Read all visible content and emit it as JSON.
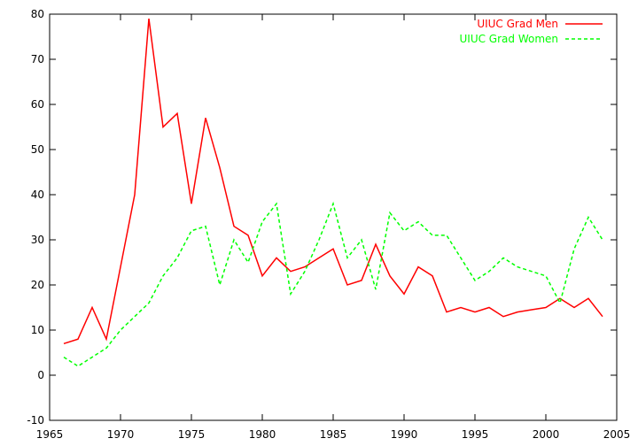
{
  "chart_data": {
    "type": "line",
    "title": "",
    "xlabel": "",
    "ylabel": "",
    "xlim": [
      1965,
      2005
    ],
    "ylim": [
      -10,
      80
    ],
    "xticks": [
      1965,
      1970,
      1975,
      1980,
      1985,
      1990,
      1995,
      2000,
      2005
    ],
    "yticks": [
      -10,
      0,
      10,
      20,
      30,
      40,
      50,
      60,
      70,
      80
    ],
    "grid": false,
    "legend_position": "top-right",
    "x": [
      1966,
      1967,
      1968,
      1969,
      1970,
      1971,
      1972,
      1973,
      1974,
      1975,
      1976,
      1977,
      1978,
      1979,
      1980,
      1981,
      1982,
      1983,
      1984,
      1985,
      1986,
      1987,
      1988,
      1989,
      1990,
      1991,
      1992,
      1993,
      1994,
      1995,
      1996,
      1997,
      1998,
      1999,
      2000,
      2001,
      2002,
      2003,
      2004
    ],
    "series": [
      {
        "name": "UIUC Grad Men",
        "color": "#ff0000",
        "dash": "solid",
        "values": [
          7,
          8,
          15,
          8,
          24,
          40,
          79,
          55,
          58,
          38,
          57,
          46,
          33,
          31,
          22,
          26,
          23,
          24,
          26,
          28,
          20,
          21,
          29,
          22,
          18,
          24,
          22,
          14,
          15,
          14,
          15,
          13,
          14,
          14.5,
          15,
          17,
          15,
          17,
          13
        ]
      },
      {
        "name": "UIUC Grad Women",
        "color": "#00ff00",
        "dash": "dashed",
        "values": [
          4,
          2,
          4,
          6,
          10,
          13,
          16,
          22,
          26,
          32,
          33,
          20,
          30,
          25,
          34,
          38,
          18,
          23,
          30,
          38,
          26,
          30,
          19,
          36,
          32,
          34,
          31,
          31,
          26,
          21,
          23,
          26,
          24,
          23,
          22,
          16,
          28,
          35,
          30
        ]
      }
    ]
  }
}
